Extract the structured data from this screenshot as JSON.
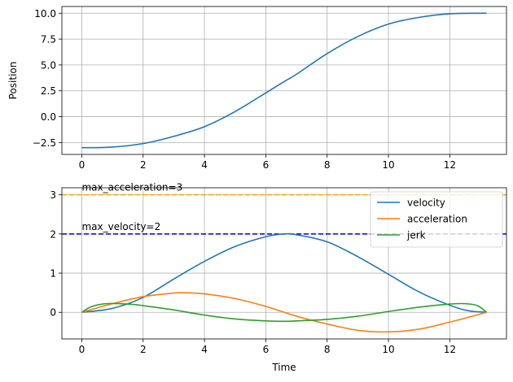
{
  "chart_data": [
    {
      "type": "line",
      "xlabel": "",
      "ylabel": "Position",
      "xlim": [
        -0.65,
        13.85
      ],
      "ylim": [
        -3.65,
        10.65
      ],
      "xticks": [
        0,
        2,
        4,
        6,
        8,
        10,
        12
      ],
      "yticks": [
        -2.5,
        0.0,
        2.5,
        5.0,
        7.5,
        10.0
      ],
      "ytick_labels": [
        "−2.5",
        "0.0",
        "2.5",
        "5.0",
        "7.5",
        "10.0"
      ],
      "grid": true,
      "colors": {
        "position": "#1f77b4"
      },
      "series": [
        {
          "x": [
            0,
            1,
            2,
            3,
            4,
            5,
            6,
            6.6,
            7,
            8,
            9,
            10,
            11,
            12,
            13,
            13.2
          ],
          "values": [
            -3.0,
            -2.94,
            -2.6,
            -1.9,
            -0.97,
            0.5,
            2.3,
            3.4,
            4.1,
            6.1,
            7.75,
            8.95,
            9.6,
            9.95,
            10.0,
            10.0
          ]
        }
      ]
    },
    {
      "type": "line",
      "xlabel": "Time",
      "ylabel": "",
      "xlim": [
        -0.65,
        13.85
      ],
      "ylim": [
        -0.68,
        3.18
      ],
      "xticks": [
        0,
        2,
        4,
        6,
        8,
        10,
        12
      ],
      "yticks": [
        0,
        1,
        2,
        3
      ],
      "grid": true,
      "legend": "top-right",
      "colors": {
        "velocity": "#1f77b4",
        "acceleration": "#ff7f0e",
        "jerk": "#2ca02c",
        "max_velocity_line": "#0000cc",
        "max_acceleration_line": "#ffa500"
      },
      "series": [
        {
          "name": "velocity",
          "x": [
            0,
            1,
            2,
            3,
            4,
            5,
            6,
            6.6,
            7,
            8,
            9,
            10,
            11,
            12,
            12.6,
            13.2
          ],
          "values": [
            0,
            0.1,
            0.38,
            0.85,
            1.3,
            1.68,
            1.93,
            2.0,
            1.98,
            1.8,
            1.42,
            0.97,
            0.52,
            0.18,
            0.04,
            0
          ]
        },
        {
          "name": "acceleration",
          "x": [
            0,
            1,
            2,
            3,
            3.3,
            4,
            5,
            6,
            7,
            8,
            9,
            10,
            11,
            12,
            13.2
          ],
          "values": [
            0,
            0.22,
            0.4,
            0.49,
            0.5,
            0.47,
            0.35,
            0.15,
            -0.1,
            -0.3,
            -0.46,
            -0.5,
            -0.43,
            -0.25,
            0
          ]
        },
        {
          "name": "jerk",
          "x": [
            0,
            0.3,
            0.8,
            1.5,
            2,
            3,
            4,
            5,
            6,
            6.6,
            7,
            8,
            9,
            10,
            11,
            12,
            12.5,
            12.9,
            13.2
          ],
          "values": [
            0,
            0.14,
            0.22,
            0.21,
            0.17,
            0.06,
            -0.07,
            -0.17,
            -0.22,
            -0.23,
            -0.22,
            -0.18,
            -0.1,
            0.02,
            0.13,
            0.21,
            0.22,
            0.17,
            0
          ]
        }
      ],
      "hlines": [
        {
          "y": 2,
          "label": "max_velocity=2",
          "label_x": 0
        },
        {
          "y": 3,
          "label": "max_acceleration=3",
          "label_x": 0
        }
      ]
    }
  ]
}
